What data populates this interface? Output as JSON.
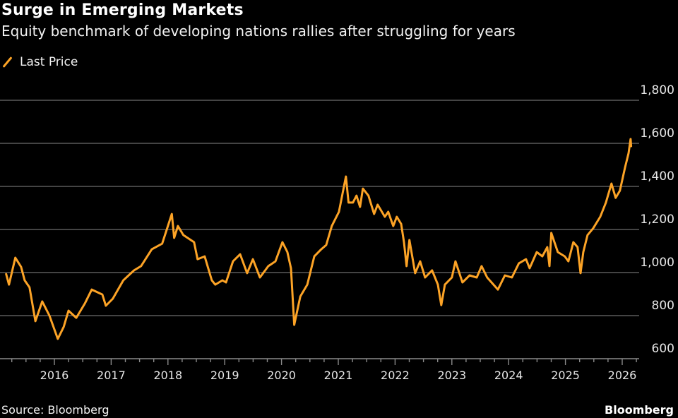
{
  "chart_data": {
    "type": "line",
    "title": "Surge in Emerging Markets",
    "subtitle": "Equity benchmark of developing nations rallies after struggling for years",
    "xlabel": "",
    "ylabel": "",
    "ylim": [
      600,
      1800
    ],
    "y_ticks": [
      600,
      800,
      1000,
      1200,
      1400,
      1600,
      1800
    ],
    "y_tick_labels": [
      "600",
      "800",
      "1,000",
      "1,200",
      "1,400",
      "1,600",
      "1,800"
    ],
    "y_axis_side": "right",
    "x_ticks": [
      "2016",
      "2017",
      "2018",
      "2019",
      "2020",
      "2021",
      "2022",
      "2023",
      "2024",
      "2025",
      "2026"
    ],
    "grid": "horizontal",
    "legend_placement": "top-left",
    "series": [
      {
        "name": "Last Price",
        "color": "#fca326",
        "points": [
          [
            "2015-02-25",
            993
          ],
          [
            "2015-03-15",
            944
          ],
          [
            "2015-04-25",
            1069
          ],
          [
            "2015-06-01",
            1026
          ],
          [
            "2015-06-24",
            964
          ],
          [
            "2015-07-25",
            931
          ],
          [
            "2015-09-01",
            774
          ],
          [
            "2015-10-15",
            866
          ],
          [
            "2015-11-30",
            800
          ],
          [
            "2016-01-23",
            692
          ],
          [
            "2016-03-01",
            748
          ],
          [
            "2016-04-01",
            823
          ],
          [
            "2016-05-21",
            790
          ],
          [
            "2016-07-15",
            856
          ],
          [
            "2016-08-29",
            921
          ],
          [
            "2016-11-05",
            898
          ],
          [
            "2016-11-28",
            846
          ],
          [
            "2017-01-12",
            879
          ],
          [
            "2017-03-20",
            964
          ],
          [
            "2017-05-28",
            1010
          ],
          [
            "2017-07-12",
            1030
          ],
          [
            "2017-09-19",
            1108
          ],
          [
            "2017-11-25",
            1134
          ],
          [
            "2018-01-26",
            1272
          ],
          [
            "2018-02-10",
            1161
          ],
          [
            "2018-03-06",
            1216
          ],
          [
            "2018-04-10",
            1174
          ],
          [
            "2018-06-18",
            1141
          ],
          [
            "2018-07-10",
            1062
          ],
          [
            "2018-08-25",
            1075
          ],
          [
            "2018-10-10",
            964
          ],
          [
            "2018-11-01",
            944
          ],
          [
            "2018-12-17",
            964
          ],
          [
            "2019-01-09",
            954
          ],
          [
            "2019-02-23",
            1052
          ],
          [
            "2019-04-10",
            1085
          ],
          [
            "2019-05-25",
            997
          ],
          [
            "2019-07-01",
            1062
          ],
          [
            "2019-08-15",
            977
          ],
          [
            "2019-10-08",
            1030
          ],
          [
            "2019-11-23",
            1052
          ],
          [
            "2020-01-07",
            1141
          ],
          [
            "2020-02-08",
            1095
          ],
          [
            "2020-03-02",
            1020
          ],
          [
            "2020-03-23",
            757
          ],
          [
            "2020-05-01",
            889
          ],
          [
            "2020-06-15",
            944
          ],
          [
            "2020-07-30",
            1075
          ],
          [
            "2020-09-13",
            1108
          ],
          [
            "2020-10-15",
            1128
          ],
          [
            "2020-11-20",
            1216
          ],
          [
            "2021-01-05",
            1282
          ],
          [
            "2021-02-19",
            1446
          ],
          [
            "2021-03-08",
            1325
          ],
          [
            "2021-04-05",
            1325
          ],
          [
            "2021-04-28",
            1357
          ],
          [
            "2021-05-21",
            1305
          ],
          [
            "2021-06-08",
            1390
          ],
          [
            "2021-07-14",
            1357
          ],
          [
            "2021-08-19",
            1272
          ],
          [
            "2021-09-11",
            1315
          ],
          [
            "2021-10-27",
            1259
          ],
          [
            "2021-11-18",
            1282
          ],
          [
            "2021-12-20",
            1216
          ],
          [
            "2022-01-12",
            1259
          ],
          [
            "2022-02-09",
            1226
          ],
          [
            "2022-02-27",
            1141
          ],
          [
            "2022-03-16",
            1030
          ],
          [
            "2022-04-03",
            1151
          ],
          [
            "2022-05-10",
            997
          ],
          [
            "2022-06-11",
            1052
          ],
          [
            "2022-07-13",
            977
          ],
          [
            "2022-08-27",
            1010
          ],
          [
            "2022-10-03",
            944
          ],
          [
            "2022-10-25",
            849
          ],
          [
            "2022-11-17",
            944
          ],
          [
            "2023-01-01",
            977
          ],
          [
            "2023-01-24",
            1052
          ],
          [
            "2023-03-10",
            954
          ],
          [
            "2023-04-25",
            987
          ],
          [
            "2023-06-10",
            977
          ],
          [
            "2023-07-11",
            1030
          ],
          [
            "2023-08-16",
            977
          ],
          [
            "2023-10-24",
            921
          ],
          [
            "2023-12-08",
            987
          ],
          [
            "2024-01-22",
            977
          ],
          [
            "2024-03-07",
            1043
          ],
          [
            "2024-04-22",
            1062
          ],
          [
            "2024-05-15",
            1020
          ],
          [
            "2024-06-30",
            1095
          ],
          [
            "2024-08-05",
            1075
          ],
          [
            "2024-09-06",
            1118
          ],
          [
            "2024-09-20",
            1030
          ],
          [
            "2024-10-02",
            1184
          ],
          [
            "2024-11-13",
            1095
          ],
          [
            "2024-12-28",
            1075
          ],
          [
            "2025-01-20",
            1052
          ],
          [
            "2025-02-21",
            1141
          ],
          [
            "2025-03-20",
            1118
          ],
          [
            "2025-04-08",
            997
          ],
          [
            "2025-04-26",
            1095
          ],
          [
            "2025-05-23",
            1174
          ],
          [
            "2025-06-29",
            1206
          ],
          [
            "2025-08-13",
            1259
          ],
          [
            "2025-09-18",
            1325
          ],
          [
            "2025-10-24",
            1413
          ],
          [
            "2025-11-20",
            1347
          ],
          [
            "2025-12-17",
            1380
          ],
          [
            "2026-01-19",
            1488
          ],
          [
            "2026-02-11",
            1554
          ],
          [
            "2026-02-24",
            1620
          ],
          [
            "2026-02-27",
            1587
          ]
        ]
      }
    ]
  },
  "legend": {
    "label": "Last Price",
    "icon": "orange-slash-line"
  },
  "footer": {
    "source": "Source: Bloomberg",
    "brand": "Bloomberg"
  },
  "colors": {
    "background": "#000000",
    "line": "#fca326",
    "grid": "#5a5a5a",
    "text": "#e6e6e6"
  }
}
